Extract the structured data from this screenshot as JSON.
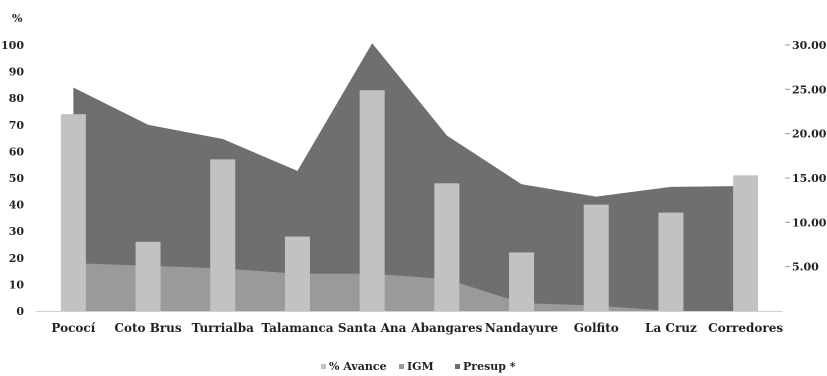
{
  "chart_data": {
    "type": "bar",
    "y_unit_label": "%",
    "categories": [
      "Pococí",
      "Coto Brus",
      "Turrialba",
      "Talamanca",
      "Santa Ana",
      "Abangares",
      "Nandayure",
      "Golfito",
      "La Cruz",
      "Corredores"
    ],
    "series": [
      {
        "name": "% Avance",
        "type": "bar",
        "axis": "left",
        "color": "#c2c2c2",
        "values": [
          74,
          26,
          57,
          28,
          83,
          48,
          22,
          40,
          37,
          51
        ]
      },
      {
        "name": "IGM",
        "type": "area",
        "axis": "left",
        "color": "#9a9a9a",
        "values": [
          18,
          17,
          16,
          14,
          14,
          12,
          3,
          2,
          0,
          0
        ]
      },
      {
        "name": "Presup *",
        "type": "area",
        "axis": "right",
        "color": "#6f6f72",
        "values": [
          25.2,
          21,
          19.4,
          15.8,
          30.2,
          19.8,
          14.3,
          12.9,
          14,
          14.1
        ]
      }
    ],
    "left_axis": {
      "ylim": [
        0,
        100
      ],
      "ticks": [
        "0",
        "10",
        "20",
        "30",
        "40",
        "50",
        "60",
        "70",
        "80",
        "90",
        "100"
      ]
    },
    "right_axis": {
      "ylim": [
        0,
        30
      ],
      "ticks": [
        "5.00",
        "10.00",
        "15.00",
        "20.00",
        "25.00",
        "30.00"
      ],
      "tick_values": [
        5,
        10,
        15,
        20,
        25,
        30
      ]
    },
    "legend": {
      "position": "bottom",
      "entries": [
        "% Avance",
        "IGM",
        "Presup *"
      ]
    },
    "grid": false
  }
}
